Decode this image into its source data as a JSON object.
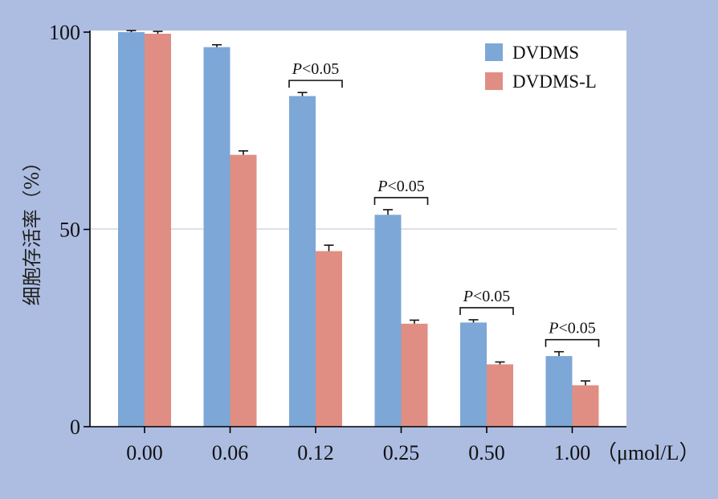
{
  "chart_data": {
    "type": "bar",
    "categories": [
      "0.00",
      "0.06",
      "0.12",
      "0.25",
      "0.50",
      "1.00"
    ],
    "xunit": "（μmol/L）",
    "ylabel": "细胞存活率（%）",
    "ylim": [
      0,
      100
    ],
    "yticks": [
      0,
      50,
      100
    ],
    "grid": "y at 50",
    "legend_position": "top-right",
    "series": [
      {
        "name": "DVDMS",
        "color": "#7da7d6",
        "values": [
          100,
          96.2,
          83.8,
          53.7,
          26.4,
          17.9
        ],
        "errors": [
          0.4,
          0.6,
          0.9,
          1.3,
          0.7,
          1.1
        ]
      },
      {
        "name": "DVDMS-L",
        "color": "#e08e83",
        "values": [
          99.6,
          68.9,
          44.5,
          26.1,
          15.8,
          10.5
        ],
        "errors": [
          0.6,
          1.0,
          1.5,
          0.9,
          0.6,
          1.1
        ]
      }
    ],
    "annotations": [
      {
        "category": "0.12",
        "text": "P<0.05"
      },
      {
        "category": "0.25",
        "text": "P<0.05"
      },
      {
        "category": "0.50",
        "text": "P<0.05"
      },
      {
        "category": "1.00",
        "text": "P<0.05"
      }
    ]
  }
}
